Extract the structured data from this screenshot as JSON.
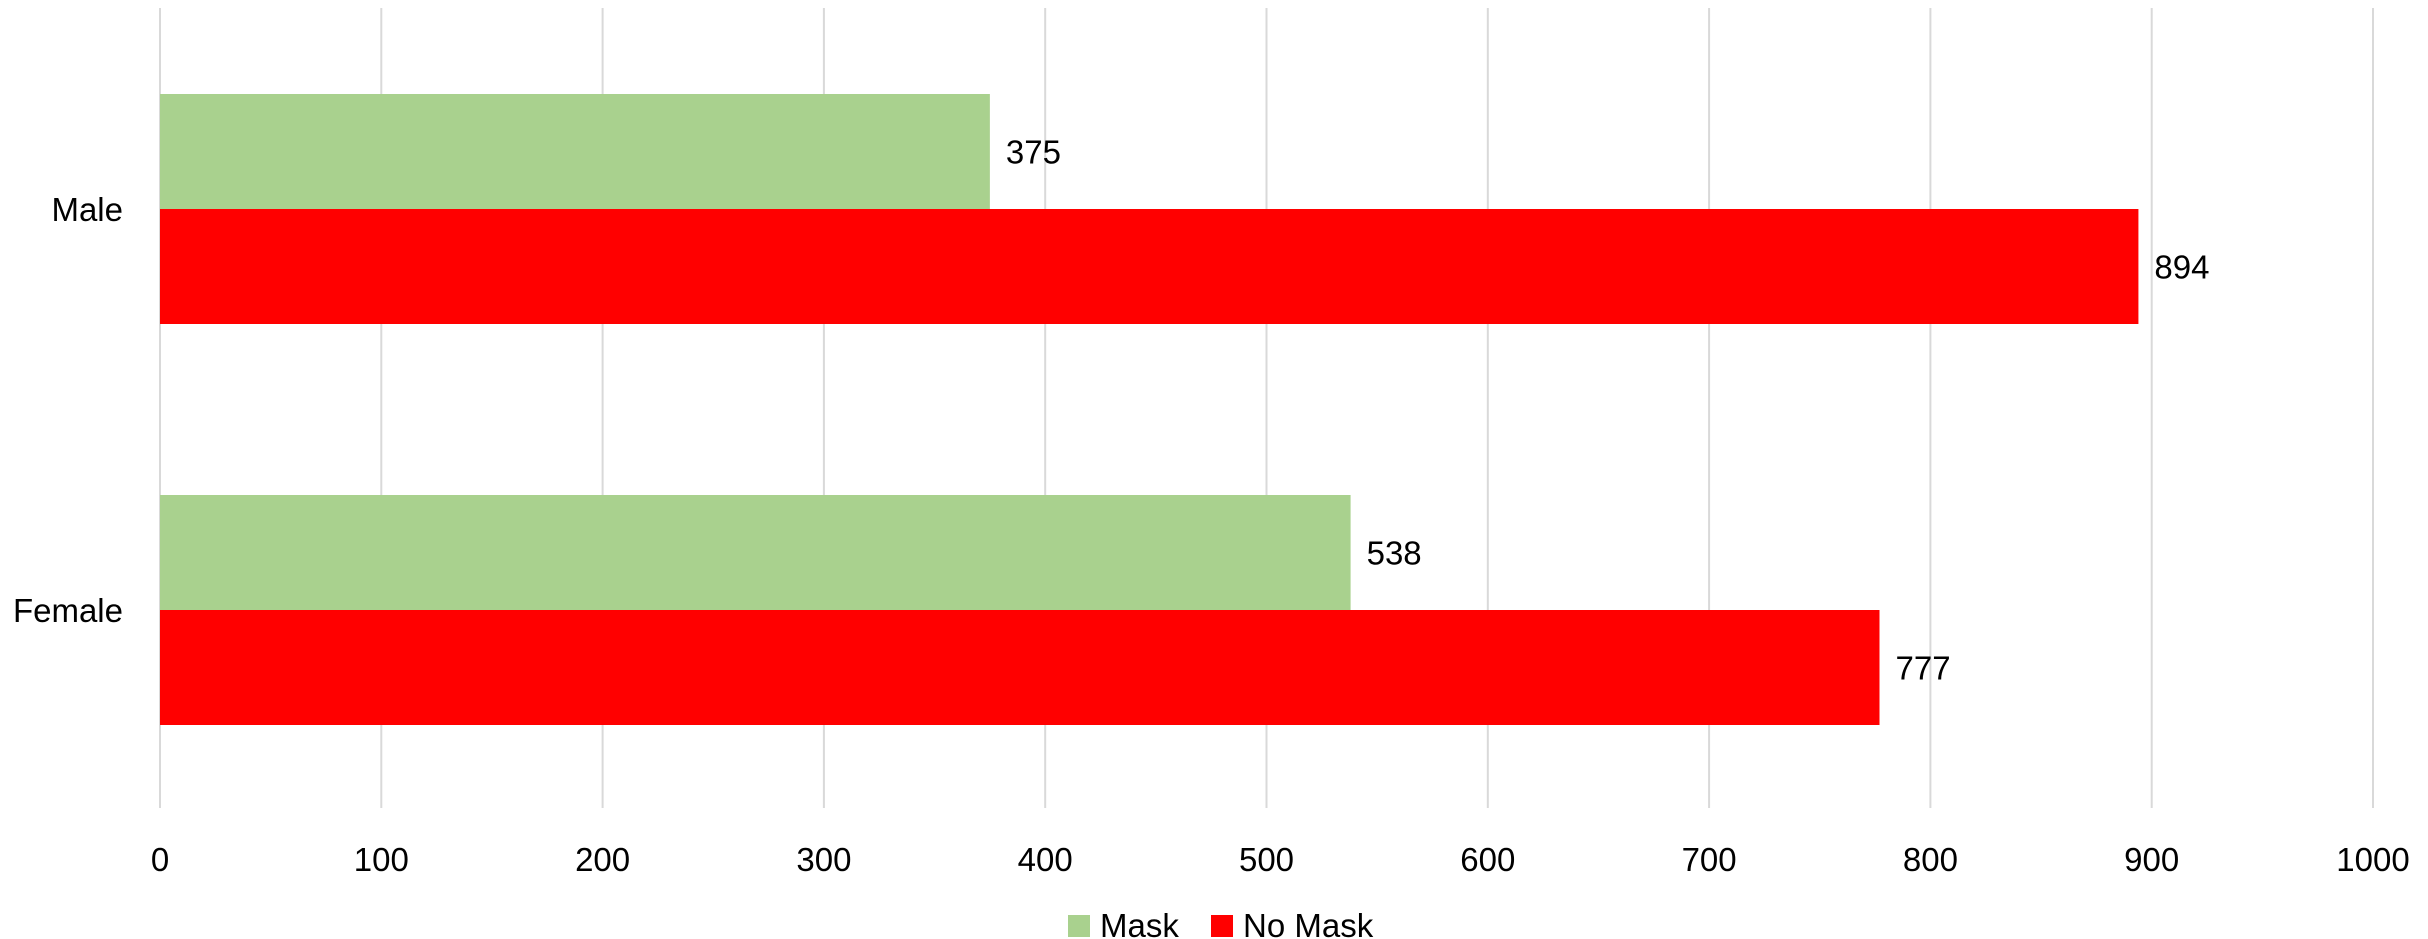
{
  "chart_data": {
    "type": "bar",
    "orientation": "horizontal",
    "categories": [
      "Male",
      "Female"
    ],
    "series": [
      {
        "name": "Mask",
        "values": [
          375,
          538
        ],
        "color": "#a9d18e"
      },
      {
        "name": "No Mask",
        "values": [
          894,
          777
        ],
        "color": "#ff0000"
      }
    ],
    "xlim": [
      0,
      1000
    ],
    "x_ticks": [
      0,
      100,
      200,
      300,
      400,
      500,
      600,
      700,
      800,
      900,
      1000
    ],
    "grid": true,
    "grid_color": "#d9d9d9",
    "legend_position": "bottom"
  }
}
